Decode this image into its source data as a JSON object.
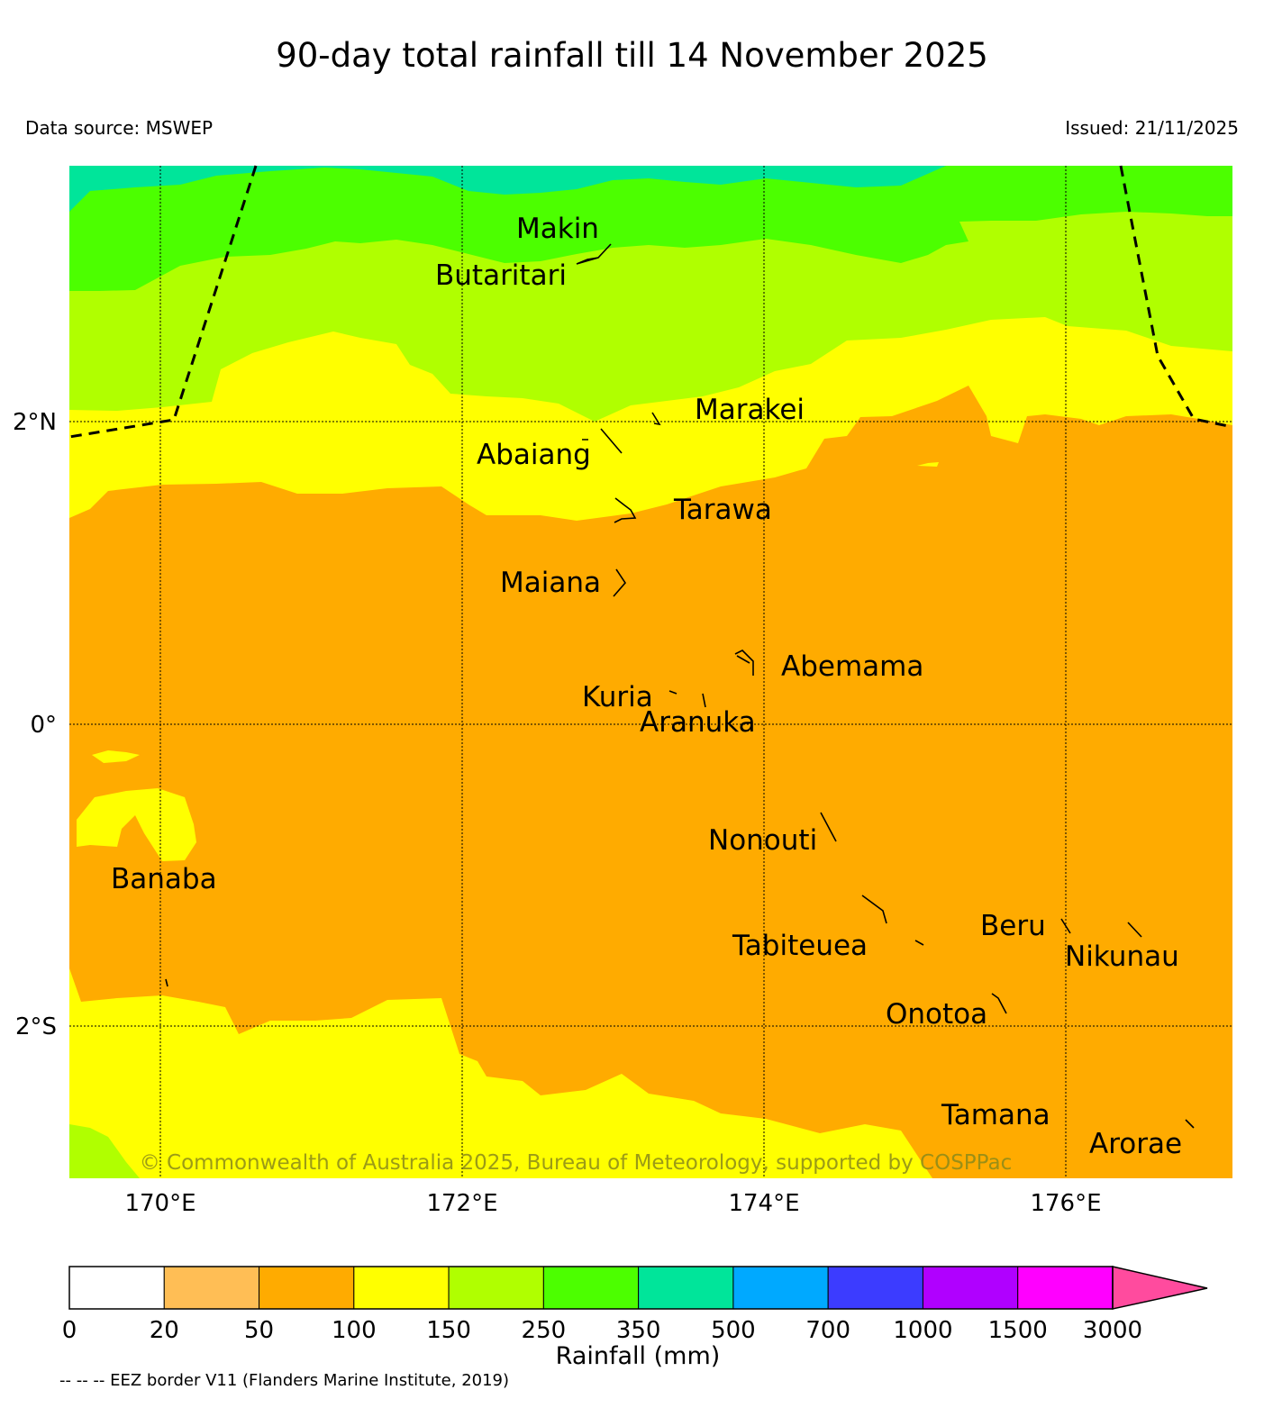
{
  "title": "90-day total rainfall till 14 November 2025",
  "data_source": "Data source: MSWEP",
  "issued": "Issued: 21/11/2025",
  "copyright": "© Commonwealth of Australia 2025, Bureau of Meteorology, supported by COSPPac",
  "eez_note": "-- -- -- EEZ border V11 (Flanders Marine Institute, 2019)",
  "axes": {
    "x_ticks": [
      "170°E",
      "172°E",
      "174°E",
      "176°E"
    ],
    "y_ticks": [
      "2°N",
      "0°",
      "2°S"
    ]
  },
  "islands": [
    {
      "name": "Makin"
    },
    {
      "name": "Butaritari"
    },
    {
      "name": "Marakei"
    },
    {
      "name": "Abaiang"
    },
    {
      "name": "Tarawa"
    },
    {
      "name": "Maiana"
    },
    {
      "name": "Abemama"
    },
    {
      "name": "Kuria"
    },
    {
      "name": "Aranuka"
    },
    {
      "name": "Nonouti"
    },
    {
      "name": "Banaba"
    },
    {
      "name": "Beru"
    },
    {
      "name": "Tabiteuea"
    },
    {
      "name": "Nikunau"
    },
    {
      "name": "Onotoa"
    },
    {
      "name": "Tamana"
    },
    {
      "name": "Arorae"
    }
  ],
  "colorbar": {
    "label": "Rainfall (mm)",
    "ticks": [
      "0",
      "20",
      "50",
      "100",
      "150",
      "250",
      "350",
      "500",
      "700",
      "1000",
      "1500",
      "3000"
    ],
    "colors": [
      "#ffffff",
      "#ffbe55",
      "#ffab00",
      "#ffff00",
      "#b0ff00",
      "#4cff00",
      "#00e59a",
      "#00a9ff",
      "#3c3cff",
      "#b000ff",
      "#ff00ff"
    ],
    "extend_color": "#ff4b9e"
  },
  "map_colors": {
    "50-100": "#ffab00",
    "100-150": "#ffff00",
    "150-250": "#b0ff00",
    "250-350": "#4cff00",
    "350-500": "#00e59a"
  }
}
